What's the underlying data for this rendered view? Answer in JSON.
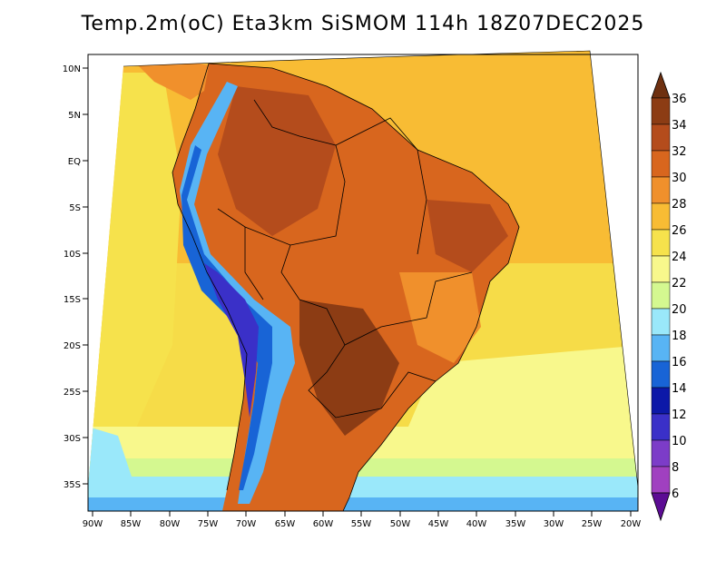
{
  "map": {
    "title": "Temp.2m(oC) Eta3km SiSMOM 114h 18Z07DEC2025",
    "lat_labels": [
      "10N",
      "5N",
      "EQ",
      "5S",
      "10S",
      "15S",
      "20S",
      "25S",
      "30S",
      "35S"
    ],
    "lon_labels": [
      "90W",
      "85W",
      "80W",
      "75W",
      "70W",
      "65W",
      "60W",
      "55W",
      "50W",
      "45W",
      "40W",
      "35W",
      "30W",
      "25W",
      "20W"
    ]
  },
  "colorbar": {
    "levels": [
      "36",
      "34",
      "32",
      "30",
      "28",
      "26",
      "24",
      "22",
      "20",
      "18",
      "16",
      "14",
      "12",
      "10",
      "8",
      "6"
    ],
    "colors": [
      "#6e3010",
      "#8c3c14",
      "#b44c1c",
      "#d8661e",
      "#f0902c",
      "#f8bc34",
      "#f6e24c",
      "#f8f88c",
      "#d4f890",
      "#9ae8fa",
      "#58b4f4",
      "#1864d6",
      "#0c18a8",
      "#3a30c8",
      "#7c3cc8",
      "#5c0c94"
    ]
  },
  "colors": {
    "ocean_warm": "#f8bc34",
    "ocean_mild": "#f6e24c",
    "ocean_cool": "#f8f88c",
    "land_hot": "#d8661e",
    "land_very_hot": "#b44c1c",
    "andes_cold": "#58b4f4",
    "andes_colder": "#1864d6",
    "andes_coldest": "#3a30c8"
  }
}
